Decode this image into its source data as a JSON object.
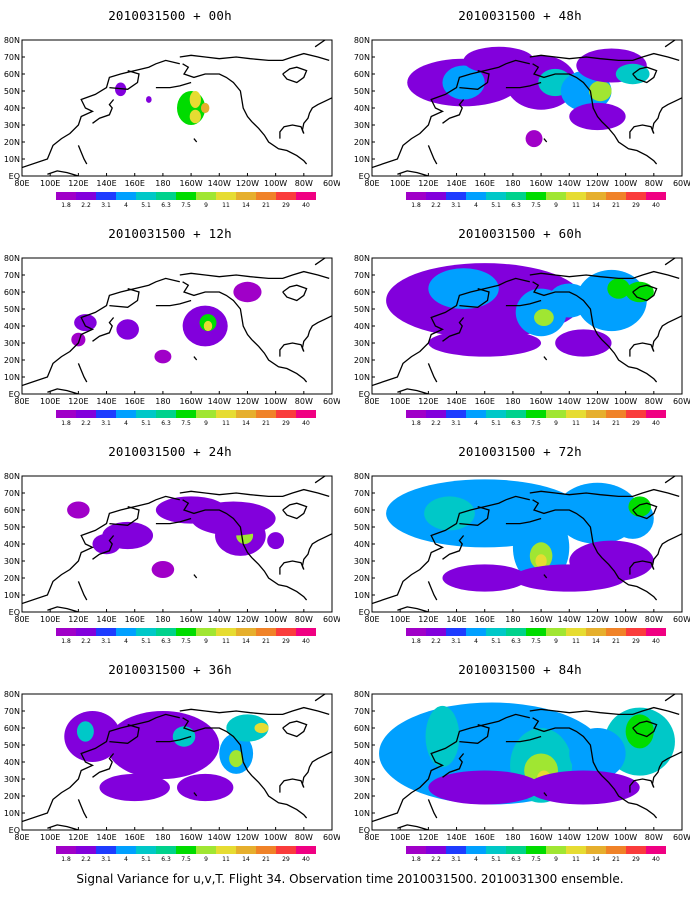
{
  "panels": [
    {
      "title": "2010031500 + 00h",
      "hour": 0
    },
    {
      "title": "2010031500 + 48h",
      "hour": 48
    },
    {
      "title": "2010031500 + 12h",
      "hour": 12
    },
    {
      "title": "2010031500 + 60h",
      "hour": 60
    },
    {
      "title": "2010031500 + 24h",
      "hour": 24
    },
    {
      "title": "2010031500 + 72h",
      "hour": 72
    },
    {
      "title": "2010031500 + 36h",
      "hour": 36
    },
    {
      "title": "2010031500 + 84h",
      "hour": 84
    }
  ],
  "footer": "Signal Variance for u,v,T. Flight 34. Observation time 2010031500. 2010031300 ensemble.",
  "chart_data": {
    "type": "heatmap",
    "x_ticks": [
      "80E",
      "100E",
      "120E",
      "140E",
      "160E",
      "180",
      "160W",
      "140W",
      "120W",
      "100W",
      "80W",
      "60W"
    ],
    "y_ticks": [
      "EQ",
      "10N",
      "20N",
      "30N",
      "40N",
      "50N",
      "60N",
      "70N",
      "80N"
    ],
    "colorbar": {
      "levels": [
        "1.8",
        "2.2",
        "3.1",
        "4",
        "5.1",
        "6.3",
        "7.5",
        "9",
        "11",
        "14",
        "21",
        "29",
        "40"
      ],
      "colors": [
        "#a000c8",
        "#8200dc",
        "#1e3cff",
        "#00a0ff",
        "#00c8c8",
        "#00d28c",
        "#00dc00",
        "#a0e632",
        "#e6dc32",
        "#e6af2d",
        "#f08228",
        "#fa3c3c",
        "#f00082"
      ]
    },
    "panels": [
      {
        "hour": 0,
        "title": "2010031500 + 00h",
        "blobs": [
          [
            -160,
            40,
            10,
            10,
            8
          ],
          [
            -157,
            45,
            4,
            5,
            11
          ],
          [
            -157,
            35,
            4,
            4,
            11
          ],
          [
            -150,
            40,
            3,
            3,
            14
          ],
          [
            -210,
            51,
            4,
            4,
            3
          ],
          [
            -190,
            45,
            2,
            2,
            3
          ]
        ]
      },
      {
        "hour": 48,
        "title": "2010031500 + 48h",
        "blobs": [
          [
            -215,
            55,
            40,
            14,
            3
          ],
          [
            -215,
            55,
            15,
            10,
            5
          ],
          [
            -190,
            68,
            25,
            8,
            3
          ],
          [
            -160,
            55,
            25,
            16,
            3
          ],
          [
            -150,
            55,
            12,
            8,
            6
          ],
          [
            -128,
            50,
            18,
            12,
            4
          ],
          [
            -118,
            50,
            8,
            6,
            9
          ],
          [
            -110,
            65,
            25,
            10,
            3
          ],
          [
            -95,
            60,
            12,
            6,
            6
          ],
          [
            -120,
            35,
            20,
            8,
            3
          ],
          [
            -165,
            22,
            6,
            5,
            2
          ]
        ]
      },
      {
        "hour": 12,
        "title": "2010031500 + 12h",
        "blobs": [
          [
            -150,
            40,
            16,
            12,
            3
          ],
          [
            -148,
            42,
            6,
            5,
            8
          ],
          [
            -148,
            40,
            3,
            3,
            11
          ],
          [
            -235,
            42,
            8,
            5,
            3
          ],
          [
            -205,
            38,
            8,
            6,
            3
          ],
          [
            -180,
            22,
            6,
            4,
            2
          ],
          [
            -240,
            32,
            5,
            4,
            2
          ],
          [
            -120,
            60,
            10,
            6,
            2
          ]
        ]
      },
      {
        "hour": 60,
        "title": "2010031500 + 60h",
        "blobs": [
          [
            -200,
            55,
            70,
            22,
            3
          ],
          [
            -215,
            62,
            25,
            12,
            5
          ],
          [
            -160,
            48,
            18,
            14,
            5
          ],
          [
            -158,
            45,
            7,
            5,
            9
          ],
          [
            -140,
            55,
            15,
            10,
            5
          ],
          [
            -110,
            55,
            25,
            18,
            4
          ],
          [
            -105,
            62,
            8,
            6,
            8
          ],
          [
            -90,
            60,
            10,
            6,
            8
          ],
          [
            -200,
            30,
            40,
            8,
            3
          ],
          [
            -130,
            30,
            20,
            8,
            3
          ]
        ]
      },
      {
        "hour": 24,
        "title": "2010031500 + 24h",
        "blobs": [
          [
            -125,
            45,
            18,
            12,
            3
          ],
          [
            -122,
            45,
            6,
            5,
            9
          ],
          [
            -130,
            55,
            30,
            10,
            3
          ],
          [
            -205,
            45,
            18,
            8,
            3
          ],
          [
            -160,
            60,
            25,
            8,
            3
          ],
          [
            -220,
            40,
            10,
            6,
            3
          ],
          [
            -100,
            42,
            6,
            5,
            3
          ],
          [
            -240,
            60,
            8,
            5,
            2
          ],
          [
            -180,
            25,
            8,
            5,
            2
          ]
        ]
      },
      {
        "hour": 72,
        "title": "2010031500 + 72h",
        "blobs": [
          [
            -200,
            58,
            70,
            20,
            4
          ],
          [
            -225,
            58,
            18,
            10,
            6
          ],
          [
            -160,
            38,
            20,
            22,
            5
          ],
          [
            -160,
            33,
            8,
            8,
            9
          ],
          [
            -160,
            30,
            4,
            4,
            11
          ],
          [
            -120,
            58,
            30,
            18,
            5
          ],
          [
            -95,
            55,
            15,
            12,
            5
          ],
          [
            -90,
            62,
            8,
            6,
            8
          ],
          [
            -110,
            30,
            30,
            12,
            3
          ],
          [
            -140,
            20,
            40,
            8,
            3
          ],
          [
            -200,
            20,
            30,
            8,
            3
          ]
        ]
      },
      {
        "hour": 36,
        "title": "2010031500 + 36h",
        "blobs": [
          [
            -230,
            55,
            20,
            15,
            3
          ],
          [
            -235,
            58,
            6,
            6,
            6
          ],
          [
            -180,
            50,
            40,
            20,
            3
          ],
          [
            -165,
            55,
            8,
            6,
            6
          ],
          [
            -128,
            45,
            12,
            12,
            5
          ],
          [
            -128,
            42,
            5,
            5,
            9
          ],
          [
            -120,
            60,
            15,
            8,
            6
          ],
          [
            -110,
            60,
            5,
            3,
            11
          ],
          [
            -200,
            25,
            25,
            8,
            3
          ],
          [
            -150,
            25,
            20,
            8,
            3
          ]
        ]
      },
      {
        "hour": 84,
        "title": "2010031500 + 84h",
        "blobs": [
          [
            -195,
            45,
            80,
            30,
            4
          ],
          [
            -230,
            55,
            12,
            18,
            6
          ],
          [
            -160,
            38,
            22,
            22,
            6
          ],
          [
            -160,
            35,
            12,
            10,
            9
          ],
          [
            -158,
            30,
            5,
            5,
            11
          ],
          [
            -90,
            52,
            25,
            20,
            6
          ],
          [
            -90,
            58,
            10,
            10,
            8
          ],
          [
            -120,
            45,
            20,
            15,
            4
          ],
          [
            -130,
            25,
            40,
            10,
            3
          ],
          [
            -200,
            25,
            40,
            10,
            3
          ]
        ]
      }
    ]
  }
}
